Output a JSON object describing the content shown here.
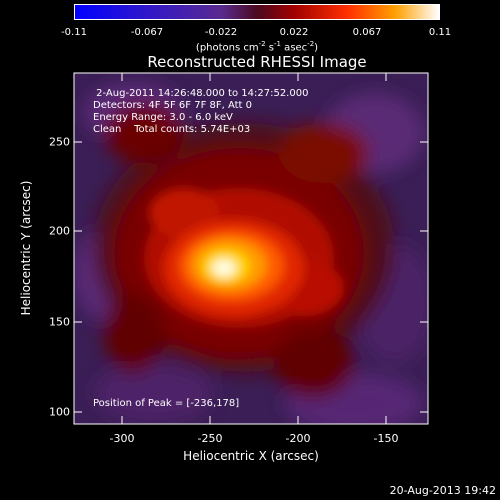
{
  "colorbar": {
    "tick_labels": [
      "-0.11",
      "-0.067",
      "-0.022",
      "0.022",
      "0.067",
      "0.11"
    ],
    "unit_prefix": "(photons cm",
    "unit_exp1": "-2",
    "unit_s": " s",
    "unit_exp2": "-1",
    "unit_asec": " asec",
    "unit_exp3": "-2",
    "unit_close": ")"
  },
  "plot": {
    "title": "Reconstructed RHESSI Image",
    "info_time": " 2-Aug-2011 14:26:48.000 to 14:27:52.000",
    "info_detectors": "Detectors: 4F 5F 6F 7F 8F, Att 0",
    "info_energy": "Energy Range: 3.0 - 6.0 keV",
    "info_clean": "Clean    Total counts: 5.74E+03",
    "peak_text": "Position of Peak = [-236,178]",
    "x_axis_label": "Heliocentric X (arcsec)",
    "y_axis_label": "Heliocentric Y (arcsec)",
    "x_ticks": [
      "-300",
      "-250",
      "-200",
      "-150"
    ],
    "y_ticks": [
      "250",
      "200",
      "150",
      "100"
    ],
    "timestamp": "20-Aug-2013 19:42"
  },
  "colors": {
    "colormap": [
      "#0000ff",
      "#3020c0",
      "#5a2a9a",
      "#6a2a80",
      "#800000",
      "#c01000",
      "#ff4000",
      "#ff9000",
      "#ffe000",
      "#ffffff"
    ]
  }
}
